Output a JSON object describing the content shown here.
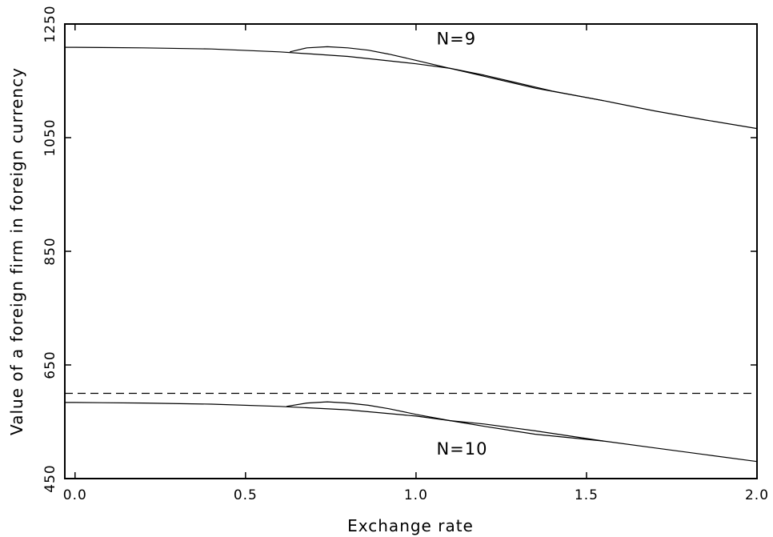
{
  "chart_data": {
    "type": "line",
    "xlabel": "Exchange rate",
    "ylabel": "Value of a foreign firm in foreign currency",
    "xlim": [
      -0.03,
      2.0
    ],
    "ylim": [
      450,
      1250
    ],
    "xticks": [
      0.0,
      0.5,
      1.0,
      1.5,
      2.0
    ],
    "xtick_labels": [
      "0.0",
      "0.5",
      "1.0",
      "1.5",
      "2.0"
    ],
    "yticks": [
      450,
      650,
      850,
      1050,
      1250
    ],
    "ytick_labels": [
      "450",
      "650",
      "850",
      "1050",
      "1250"
    ],
    "grid": false,
    "legend": "none",
    "reference_line": {
      "y": 600,
      "style": "dashed"
    },
    "annotations": [
      {
        "text": "N=9",
        "x": 1.06,
        "y": 1214
      },
      {
        "text": "N=10",
        "x": 1.06,
        "y": 492
      }
    ],
    "series": [
      {
        "x": [
          -0.03,
          0.0,
          0.2,
          0.4,
          0.6,
          0.8,
          1.0,
          1.1,
          1.2,
          1.4,
          1.55,
          1.7,
          1.85,
          2.0
        ],
        "y": [
          1209,
          1209,
          1208,
          1206,
          1201,
          1193,
          1180,
          1172,
          1160,
          1132,
          1115,
          1097,
          1081,
          1066
        ]
      },
      {
        "x": [
          0.63,
          0.68,
          0.74,
          0.8,
          0.86,
          0.92,
          1.0,
          1.1,
          1.2,
          1.35,
          1.55
        ],
        "y": [
          1201,
          1208,
          1210,
          1208,
          1204,
          1197,
          1186,
          1172,
          1158,
          1137,
          1115
        ]
      },
      {
        "x": [
          -0.03,
          0.0,
          0.2,
          0.4,
          0.6,
          0.8,
          1.0,
          1.1,
          1.2,
          1.35,
          1.55,
          1.7,
          1.85,
          2.0
        ],
        "y": [
          584,
          584,
          583,
          581,
          577,
          571,
          560,
          552,
          546,
          534,
          516,
          504,
          492,
          480
        ]
      },
      {
        "x": [
          0.62,
          0.68,
          0.74,
          0.8,
          0.86,
          0.92,
          1.0,
          1.1,
          1.2,
          1.35,
          1.55
        ],
        "y": [
          577,
          583,
          585,
          583,
          579,
          573,
          563,
          552,
          542,
          528,
          516
        ]
      }
    ]
  }
}
